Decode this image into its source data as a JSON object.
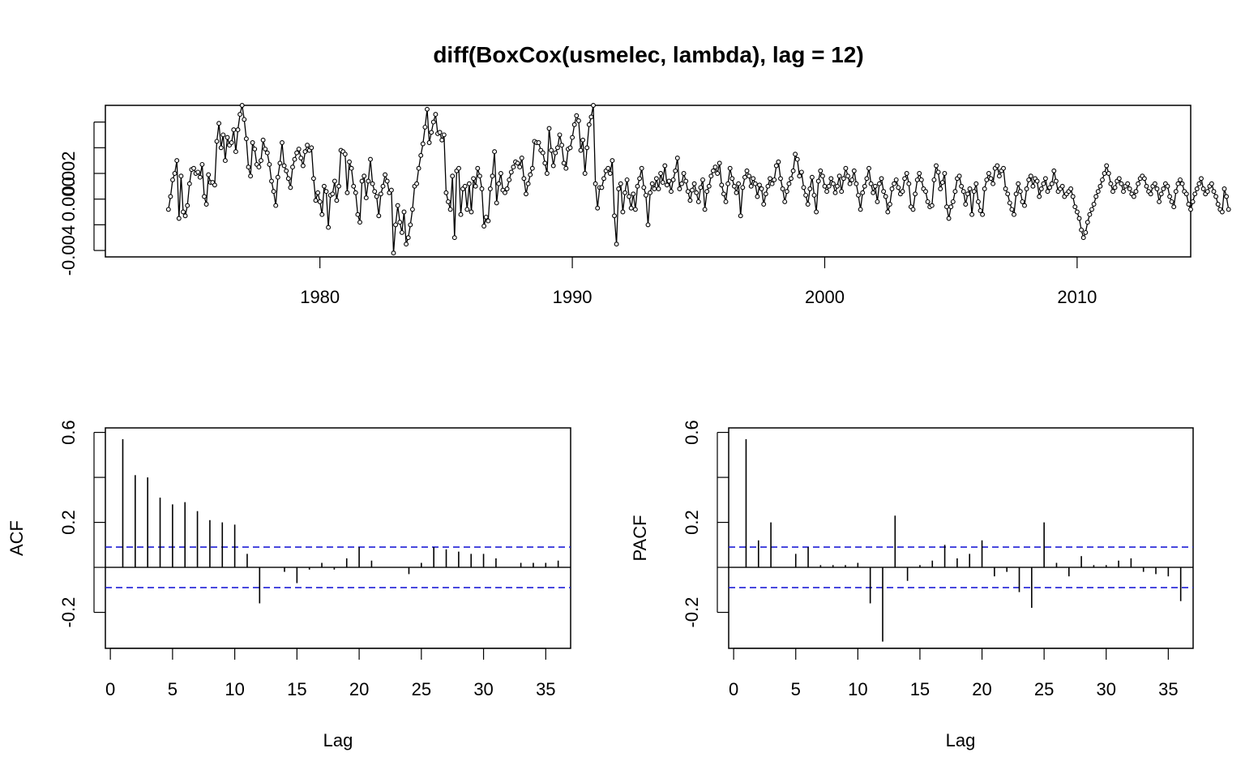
{
  "figure_title": "diff(BoxCox(usmelec, lambda), lag = 12)",
  "chart_data": [
    {
      "id": "series",
      "type": "line",
      "title": "diff(BoxCox(usmelec, lambda), lag = 12)",
      "xlabel": "",
      "ylabel": "",
      "x_start": 1974.0,
      "x_step": 0.08333333,
      "x_ticks": [
        1980,
        1990,
        2000,
        2010
      ],
      "x_tick_labels": [
        "1980",
        "1990",
        "2000",
        "2010"
      ],
      "xlim": [
        1971.5,
        2014.5
      ],
      "y_ticks": [
        -0.004,
        -0.002,
        0.0,
        0.002,
        0.004,
        0.006
      ],
      "y_tick_labels": [
        "-0.004",
        "",
        "0.000",
        "0.002",
        "",
        ""
      ],
      "ylim": [
        -0.0045,
        0.0073
      ],
      "values": [
        -0.0008,
        0.0002,
        0.0015,
        0.002,
        0.003,
        -0.0015,
        0.0018,
        -0.001,
        -0.0013,
        -0.0005,
        0.0012,
        0.0023,
        0.0024,
        0.002,
        0.0021,
        0.0017,
        0.0027,
        0.0002,
        -0.0004,
        0.0019,
        0.0013,
        0.0013,
        0.0011,
        0.0045,
        0.0059,
        0.004,
        0.005,
        0.003,
        0.0048,
        0.0042,
        0.0044,
        0.0054,
        0.0037,
        0.0054,
        0.0066,
        0.0073,
        0.0062,
        0.0047,
        0.0025,
        0.0018,
        0.0044,
        0.0039,
        0.0027,
        0.0025,
        0.003,
        0.0046,
        0.0039,
        0.0036,
        0.0027,
        0.0014,
        0.0006,
        -0.0005,
        0.0017,
        0.0028,
        0.0044,
        0.0026,
        0.0022,
        0.0016,
        0.0009,
        0.0025,
        0.0031,
        0.0036,
        0.0039,
        0.0032,
        0.0026,
        0.0037,
        0.0042,
        0.0038,
        0.004,
        0.0016,
        -0.0001,
        0.0005,
        -0.0002,
        -0.0012,
        0.001,
        0.0006,
        -0.0022,
        0.0003,
        0.0004,
        0.0014,
        -0.0001,
        0.001,
        0.0038,
        0.0037,
        0.0035,
        0.0005,
        0.0029,
        0.0024,
        0.001,
        0.0005,
        -0.0012,
        -0.0018,
        0.0014,
        0.0018,
        0.0001,
        0.0014,
        0.0031,
        0.0012,
        0.0006,
        0.0002,
        -0.0013,
        0.0004,
        0.001,
        0.0019,
        0.0014,
        0.0005,
        0.0007,
        -0.0042,
        -0.002,
        -0.0005,
        -0.0018,
        -0.0026,
        -0.001,
        -0.0035,
        -0.003,
        -0.002,
        -0.0008,
        0.001,
        0.0012,
        0.0024,
        0.0034,
        0.0043,
        0.0056,
        0.007,
        0.0044,
        0.0052,
        0.006,
        0.0066,
        0.0051,
        0.0052,
        0.0046,
        0.005,
        0.0005,
        -0.0002,
        -0.0008,
        0.0018,
        -0.003,
        0.0022,
        0.0024,
        -0.0012,
        0.0008,
        0.001,
        -0.0008,
        0.0012,
        -0.001,
        0.0016,
        0.001,
        0.0024,
        0.0018,
        0.0008,
        -0.0021,
        -0.0014,
        -0.0017,
        0.0008,
        0.0018,
        0.0037,
        -0.0003,
        0.0012,
        0.002,
        0.0007,
        0.0005,
        0.0008,
        0.0015,
        0.0021,
        0.0025,
        0.0029,
        0.0028,
        0.0025,
        0.0032,
        0.0016,
        0.0004,
        0.0012,
        0.0019,
        0.0024,
        0.0045,
        0.0044,
        0.0044,
        0.0038,
        0.0036,
        0.0028,
        0.002,
        0.0055,
        0.0038,
        0.0026,
        0.0036,
        0.004,
        0.005,
        0.0042,
        0.0028,
        0.0024,
        0.0039,
        0.004,
        0.0048,
        0.0058,
        0.0065,
        0.0061,
        0.0038,
        0.0046,
        0.002,
        0.004,
        0.0058,
        0.0064,
        0.0073,
        0.0012,
        -0.0007,
        0.0009,
        0.0009,
        0.0016,
        0.0022,
        0.0024,
        0.002,
        0.003,
        -0.0013,
        -0.0035,
        0.0008,
        0.0012,
        -0.001,
        0.0005,
        0.0015,
        0.0002,
        -0.0007,
        0.0004,
        -0.0008,
        0.001,
        0.0016,
        0.0024,
        0.0009,
        0.0003,
        -0.002,
        0.0005,
        0.0012,
        0.0008,
        0.0016,
        0.0008,
        0.002,
        0.0013,
        0.0026,
        0.0011,
        0.0014,
        0.0006,
        0.0015,
        0.0022,
        0.0032,
        0.0008,
        0.0012,
        0.002,
        0.0014,
        0.0006,
        -0.0001,
        0.0007,
        0.0012,
        0.0005,
        -0.0002,
        0.0009,
        0.0015,
        -0.0008,
        0.0006,
        0.001,
        0.0018,
        0.0022,
        0.0025,
        0.002,
        0.0028,
        0.0011,
        0.0004,
        -0.0002,
        0.0012,
        0.0024,
        0.0016,
        0.001,
        0.0005,
        0.0012,
        -0.0013,
        0.0009,
        0.0017,
        0.0022,
        0.0018,
        0.001,
        0.0016,
        0.0012,
        0.0002,
        0.0011,
        0.0008,
        -0.0004,
        0.0004,
        0.001,
        0.0016,
        0.0012,
        0.0015,
        0.0026,
        0.0029,
        0.0016,
        0.0008,
        -0.0002,
        0.0006,
        0.0012,
        0.0016,
        0.0022,
        0.0035,
        0.0031,
        0.0018,
        0.0021,
        0.0009,
        0.0003,
        -0.0004,
        0.0008,
        0.0017,
        0.0003,
        -0.001,
        0.0014,
        0.0022,
        0.0018,
        0.001,
        0.0006,
        0.001,
        0.0016,
        0.0012,
        0.0005,
        0.001,
        0.0018,
        0.0006,
        0.0016,
        0.0024,
        0.0018,
        0.0012,
        0.0015,
        0.0022,
        0.0012,
        0.0003,
        -0.0008,
        0.0005,
        0.001,
        0.0016,
        0.0024,
        0.0012,
        0.0005,
        0.001,
        -0.0002,
        0.0012,
        0.0016,
        0.0006,
        0.0002,
        -0.001,
        -0.0004,
        0.0008,
        0.0012,
        0.0015,
        0.0009,
        0.0004,
        0.0006,
        0.0016,
        0.002,
        0.0012,
        -0.0006,
        -0.0008,
        0.0004,
        0.0015,
        0.002,
        0.0015,
        0.0008,
        0.0006,
        -0.0002,
        -0.0006,
        -0.0005,
        0.0015,
        0.0026,
        0.0021,
        0.0008,
        0.0013,
        0.002,
        -0.0006,
        -0.0015,
        -0.0006,
        -0.0002,
        0.0006,
        0.0016,
        0.0018,
        0.001,
        0.0006,
        -0.0004,
        0.0004,
        0.0008,
        -0.0012,
        0.0006,
        0.0012,
        -0.0002,
        -0.0009,
        -0.0012,
        0.0008,
        0.0015,
        0.002,
        0.0016,
        0.0012,
        0.0024,
        0.0026,
        0.0018,
        0.0022,
        0.0024,
        0.0008,
        0.0004,
        -0.0003,
        -0.0008,
        -0.0012,
        0.0004,
        0.0012,
        0.0006,
        -0.0002,
        -0.0005,
        0.0008,
        0.0015,
        0.0018,
        0.001,
        0.0016,
        0.0014,
        0.0002,
        0.0008,
        0.0012,
        0.0016,
        0.0006,
        0.0009,
        0.0012,
        0.0022,
        0.0014,
        0.0006,
        0.0008,
        0.001,
        0.0002,
        0.0004,
        0.0006,
        0.0008,
        0.0002,
        -0.0006,
        -0.001,
        -0.0015,
        -0.0024,
        -0.003,
        -0.0026,
        -0.0018,
        -0.0012,
        -0.0008,
        -0.0004,
        0.0002,
        0.0006,
        0.001,
        0.0015,
        0.002,
        0.0026,
        0.002,
        0.0012,
        0.0006,
        0.0009,
        0.0014,
        0.0016,
        0.0012,
        0.0006,
        0.001,
        0.0012,
        0.0008,
        0.0004,
        0.0002,
        0.0006,
        0.0012,
        0.0016,
        0.0018,
        0.0016,
        0.001,
        0.0006,
        0.0004,
        0.001,
        0.0012,
        0.0008,
        -0.0002,
        0.0004,
        0.0008,
        0.0012,
        0.001,
        0.0002,
        -0.0002,
        -0.0006,
        0.0006,
        0.0012,
        0.0015,
        0.0012,
        0.0006,
        0.0004,
        -0.0004,
        -0.0008,
        -0.0002,
        0.0004,
        0.0008,
        0.0012,
        0.0016,
        0.0008,
        0.0004,
        0.0006,
        0.001,
        0.0012,
        0.0006,
        0.0002,
        -0.0004,
        -0.0008,
        -0.001,
        0.0008,
        0.0002,
        -0.0008
      ]
    },
    {
      "id": "acf",
      "type": "bar",
      "title": "",
      "xlabel": "Lag",
      "ylabel": "ACF",
      "xlim": [
        -0.4,
        37.0
      ],
      "ylim": [
        -0.36,
        0.62
      ],
      "x_ticks": [
        0,
        5,
        10,
        15,
        20,
        25,
        30,
        35
      ],
      "x_tick_labels": [
        "0",
        "5",
        "10",
        "15",
        "20",
        "25",
        "30",
        "35"
      ],
      "y_ticks": [
        -0.2,
        0.0,
        0.2,
        0.4,
        0.6
      ],
      "y_tick_labels": [
        "-0.2",
        "",
        "0.2",
        "",
        "0.6"
      ],
      "ci": 0.09,
      "lags": [
        1,
        2,
        3,
        4,
        5,
        6,
        7,
        8,
        9,
        10,
        11,
        12,
        13,
        14,
        15,
        16,
        17,
        18,
        19,
        20,
        21,
        22,
        23,
        24,
        25,
        26,
        27,
        28,
        29,
        30,
        31,
        32,
        33,
        34,
        35,
        36
      ],
      "values": [
        0.57,
        0.41,
        0.4,
        0.31,
        0.28,
        0.29,
        0.25,
        0.21,
        0.2,
        0.19,
        0.06,
        -0.16,
        0.0,
        -0.02,
        -0.07,
        -0.01,
        0.02,
        -0.01,
        0.04,
        0.09,
        0.03,
        0.0,
        0.0,
        -0.03,
        0.02,
        0.09,
        0.08,
        0.07,
        0.06,
        0.06,
        0.04,
        0.0,
        0.02,
        0.02,
        0.02,
        0.03
      ]
    },
    {
      "id": "pacf",
      "type": "bar",
      "title": "",
      "xlabel": "Lag",
      "ylabel": "PACF",
      "xlim": [
        -0.4,
        37.0
      ],
      "ylim": [
        -0.36,
        0.62
      ],
      "x_ticks": [
        0,
        5,
        10,
        15,
        20,
        25,
        30,
        35
      ],
      "x_tick_labels": [
        "0",
        "5",
        "10",
        "15",
        "20",
        "25",
        "30",
        "35"
      ],
      "y_ticks": [
        -0.2,
        0.0,
        0.2,
        0.4,
        0.6
      ],
      "y_tick_labels": [
        "-0.2",
        "",
        "0.2",
        "",
        "0.6"
      ],
      "ci": 0.09,
      "lags": [
        1,
        2,
        3,
        4,
        5,
        6,
        7,
        8,
        9,
        10,
        11,
        12,
        13,
        14,
        15,
        16,
        17,
        18,
        19,
        20,
        21,
        22,
        23,
        24,
        25,
        26,
        27,
        28,
        29,
        30,
        31,
        32,
        33,
        34,
        35,
        36
      ],
      "values": [
        0.57,
        0.12,
        0.2,
        0.0,
        0.06,
        0.09,
        0.01,
        0.01,
        0.01,
        0.02,
        -0.16,
        -0.33,
        0.23,
        -0.06,
        0.01,
        0.03,
        0.1,
        0.04,
        0.06,
        0.12,
        -0.04,
        -0.02,
        -0.11,
        -0.18,
        0.2,
        0.02,
        -0.04,
        0.05,
        0.01,
        0.01,
        0.03,
        0.04,
        -0.02,
        -0.03,
        -0.04,
        -0.15
      ]
    }
  ]
}
